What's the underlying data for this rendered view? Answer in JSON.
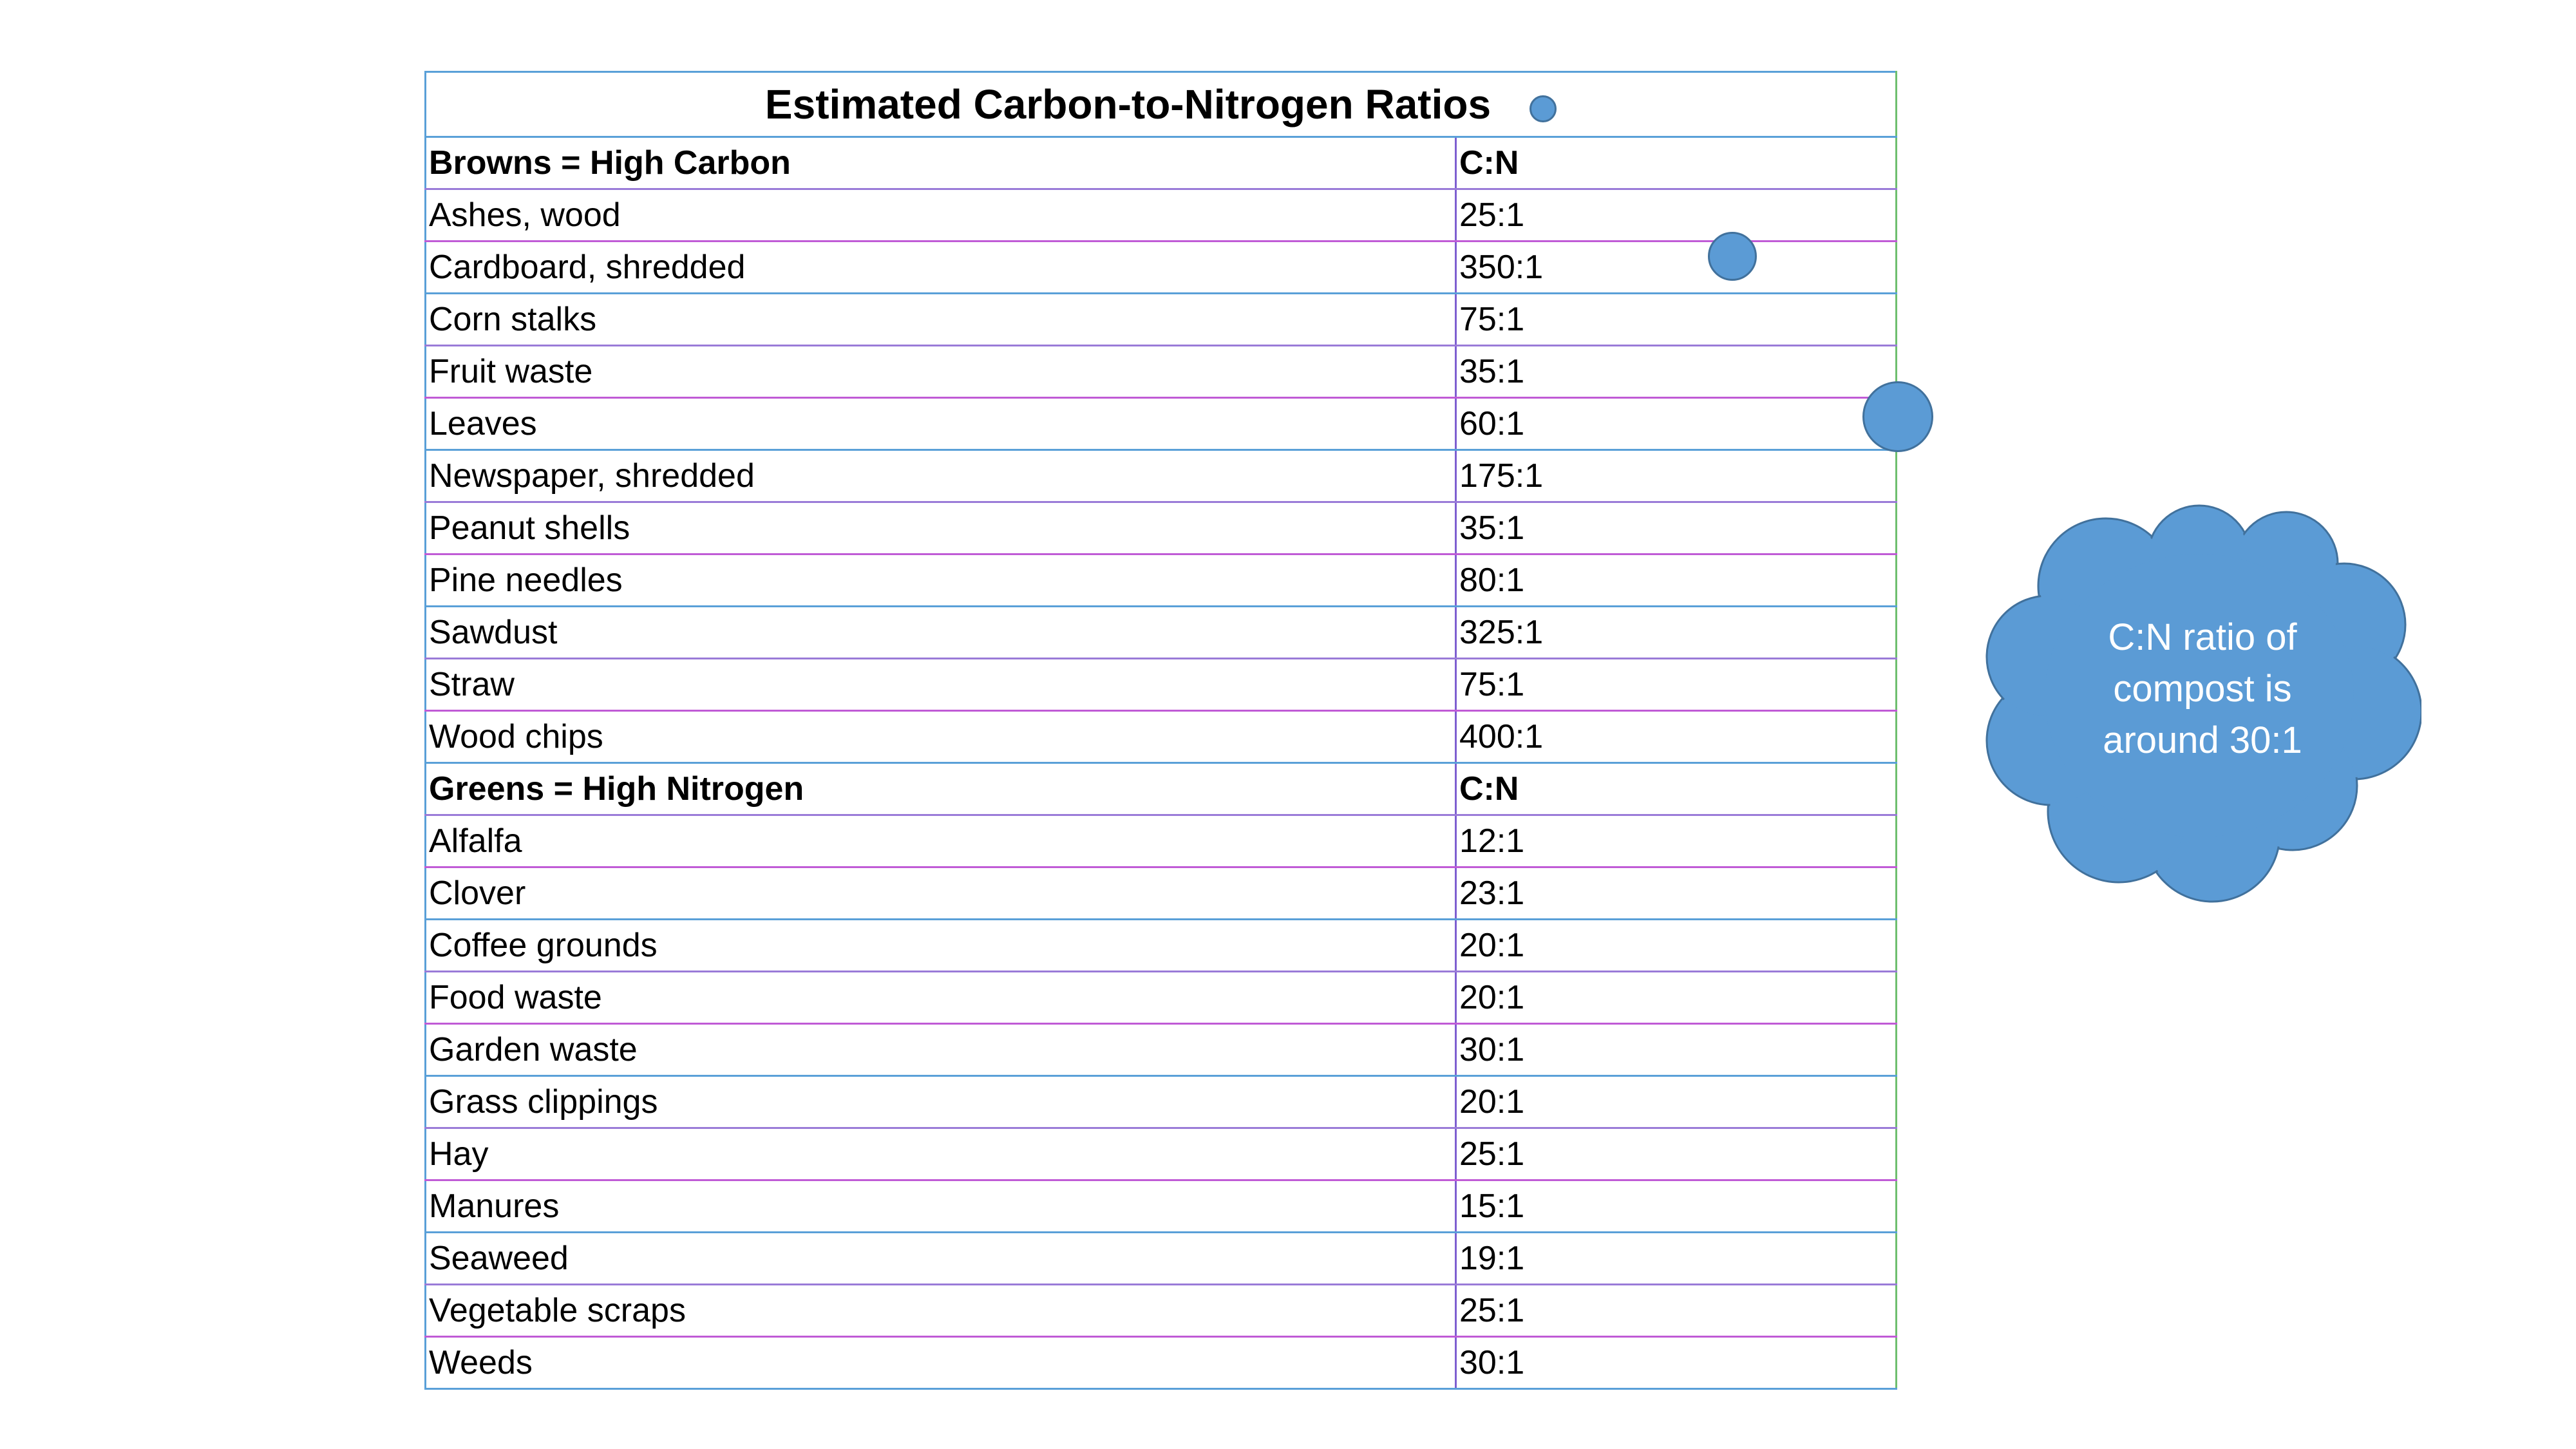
{
  "table": {
    "title": "Estimated Carbon-to-Nitrogen Ratios",
    "browns_header": {
      "label": "Browns = High Carbon",
      "ratio_label": "C:N"
    },
    "browns": [
      {
        "name": "Ashes, wood",
        "ratio": "25:1"
      },
      {
        "name": "Cardboard, shredded",
        "ratio": "350:1"
      },
      {
        "name": "Corn stalks",
        "ratio": "75:1"
      },
      {
        "name": "Fruit waste",
        "ratio": "35:1"
      },
      {
        "name": "Leaves",
        "ratio": "60:1"
      },
      {
        "name": "Newspaper, shredded",
        "ratio": "175:1"
      },
      {
        "name": "Peanut shells",
        "ratio": "35:1"
      },
      {
        "name": "Pine needles",
        "ratio": "80:1"
      },
      {
        "name": "Sawdust",
        "ratio": "325:1"
      },
      {
        "name": "Straw",
        "ratio": "75:1"
      },
      {
        "name": "Wood chips",
        "ratio": "400:1"
      }
    ],
    "greens_header": {
      "label": "Greens = High Nitrogen",
      "ratio_label": "C:N"
    },
    "greens": [
      {
        "name": "Alfalfa",
        "ratio": "12:1"
      },
      {
        "name": "Clover",
        "ratio": "23:1"
      },
      {
        "name": "Coffee grounds",
        "ratio": "20:1"
      },
      {
        "name": "Food waste",
        "ratio": "20:1"
      },
      {
        "name": "Garden waste",
        "ratio": "30:1"
      },
      {
        "name": "Grass clippings",
        "ratio": "20:1"
      },
      {
        "name": "Hay",
        "ratio": "25:1"
      },
      {
        "name": "Manures",
        "ratio": "15:1"
      },
      {
        "name": "Seaweed",
        "ratio": "19:1"
      },
      {
        "name": "Vegetable scraps",
        "ratio": "25:1"
      },
      {
        "name": "Weeds",
        "ratio": "30:1"
      }
    ]
  },
  "callout": {
    "lines": [
      "C:N ratio of",
      "compost is",
      "around 30:1"
    ],
    "fill_color": "#5b9bd5",
    "stroke_color": "#41719c",
    "icon": "thought-bubble-icon"
  }
}
